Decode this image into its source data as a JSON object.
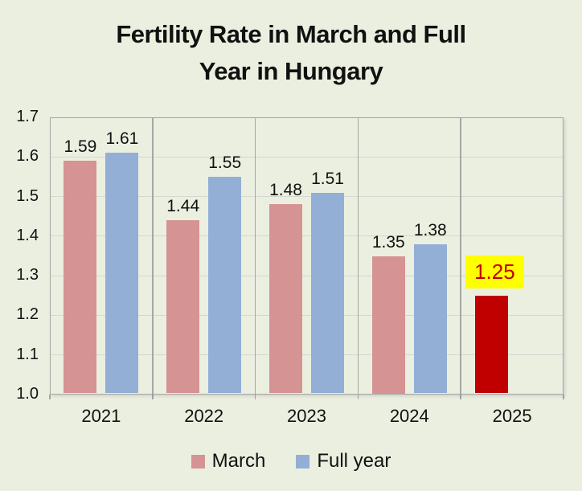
{
  "chart": {
    "title_lines": [
      "Fertility Rate in March and Full",
      "Year in Hungary"
    ]
  },
  "chart_data": {
    "type": "bar",
    "title": "Fertility Rate in March and Full Year in Hungary",
    "categories": [
      "2021",
      "2022",
      "2023",
      "2024",
      "2025"
    ],
    "series": [
      {
        "name": "March",
        "color": "#d69394",
        "values": [
          1.59,
          1.44,
          1.48,
          1.35,
          1.25
        ]
      },
      {
        "name": "Full year",
        "color": "#93afd6",
        "values": [
          1.61,
          1.55,
          1.51,
          1.38,
          null
        ]
      }
    ],
    "ylim": [
      1.0,
      1.7
    ],
    "ytick_step": 0.1,
    "ytick_labels": [
      "1.0",
      "1.1",
      "1.2",
      "1.3",
      "1.4",
      "1.5",
      "1.6",
      "1.7"
    ],
    "grid": true,
    "legend_position": "bottom",
    "data_labels": true,
    "highlight": {
      "category": "2025",
      "series": "March",
      "bar_color": "#c00000",
      "label_text": "1.25",
      "label_bg": "#ffff00",
      "label_color": "#c00000"
    },
    "colors": {
      "background": "#ebefe0",
      "gridline": "#d4d7d2",
      "plot_border": "#a6a6a6",
      "text": "#111111"
    }
  }
}
